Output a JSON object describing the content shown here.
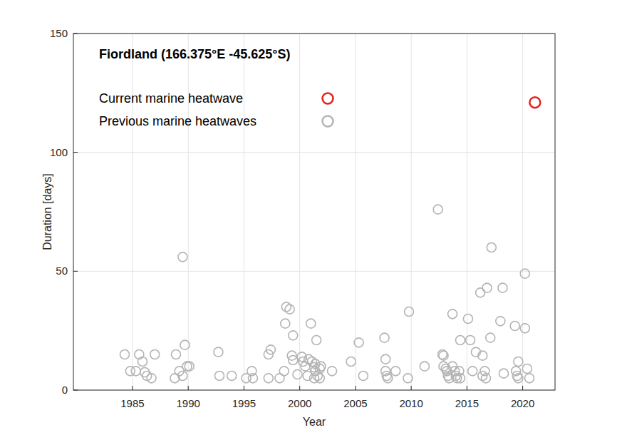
{
  "chart_data": {
    "type": "scatter",
    "title": "Fiordland (166.375°E -45.625°S)",
    "x_label": "Year",
    "y_label": "Duration [days]",
    "xlim": [
      1979.7,
      2022.9
    ],
    "ylim": [
      0,
      150
    ],
    "xticks": [
      1985,
      1990,
      1995,
      2000,
      2005,
      2010,
      2015,
      2020
    ],
    "yticks": [
      0,
      50,
      100,
      150
    ],
    "grid": true,
    "legend": "upper left",
    "marker": "circle",
    "series": [
      {
        "name": "Current marine heatwave",
        "color": "#e3231f",
        "x": [
          2021.1
        ],
        "values": [
          121
        ]
      },
      {
        "name": "Previous marine heatwaves",
        "color": "#b4b4b4",
        "x": [
          1984.3,
          1984.8,
          1985.3,
          1985.6,
          1985.9,
          1986.1,
          1986.3,
          1986.7,
          1987.0,
          1988.8,
          1988.9,
          1989.2,
          1989.5,
          1989.5,
          1989.7,
          1989.9,
          1990.1,
          1992.7,
          1992.8,
          1993.9,
          1995.2,
          1995.7,
          1995.8,
          1997.2,
          1997.2,
          1997.4,
          1998.2,
          1998.6,
          1998.7,
          1998.8,
          1999.1,
          1999.3,
          1999.4,
          1999.4,
          1999.8,
          2000.2,
          2000.3,
          2000.5,
          2000.7,
          2000.8,
          2001.0,
          2001.1,
          2001.3,
          2001.3,
          2001.4,
          2001.4,
          2001.5,
          2001.6,
          2001.8,
          2001.8,
          2001.9,
          2002.9,
          2004.6,
          2005.3,
          2005.7,
          2007.6,
          2007.7,
          2007.7,
          2007.8,
          2007.9,
          2008.6,
          2009.8,
          2009.7,
          2011.2,
          2012.4,
          2012.8,
          2012.9,
          2012.9,
          2013.1,
          2013.2,
          2013.3,
          2013.4,
          2013.7,
          2013.7,
          2013.9,
          2014.0,
          2014.1,
          2014.3,
          2014.4,
          2014.4,
          2015.1,
          2015.3,
          2015.5,
          2015.8,
          2016.2,
          2016.4,
          2016.4,
          2016.6,
          2016.7,
          2016.8,
          2017.1,
          2017.2,
          2018.0,
          2018.2,
          2018.3,
          2019.3,
          2019.4,
          2019.5,
          2019.6,
          2019.6,
          2020.2,
          2020.2,
          2020.4,
          2020.6
        ],
        "values": [
          15,
          8,
          8,
          15,
          12,
          7.5,
          6,
          5,
          15,
          5,
          15,
          8,
          56,
          6,
          19,
          10,
          10,
          16,
          6,
          6,
          5,
          8,
          5,
          5,
          15,
          17,
          5,
          8,
          28,
          35,
          34,
          14.5,
          23,
          12.6,
          6.6,
          14,
          12,
          10,
          6,
          13,
          28,
          12,
          9.6,
          5,
          8,
          11,
          21,
          6,
          9,
          5,
          10,
          8,
          12,
          20,
          6,
          22,
          13,
          8,
          6,
          5,
          8,
          33,
          5,
          10,
          76,
          15,
          10,
          14.5,
          9,
          8,
          6,
          5,
          32,
          10,
          8,
          6,
          5,
          8,
          5,
          21,
          30,
          21,
          8,
          16,
          41,
          14.5,
          6,
          8,
          5,
          43,
          22,
          60,
          29,
          43,
          7,
          27,
          8,
          6,
          12,
          5,
          49,
          26,
          9,
          5
        ]
      }
    ]
  }
}
